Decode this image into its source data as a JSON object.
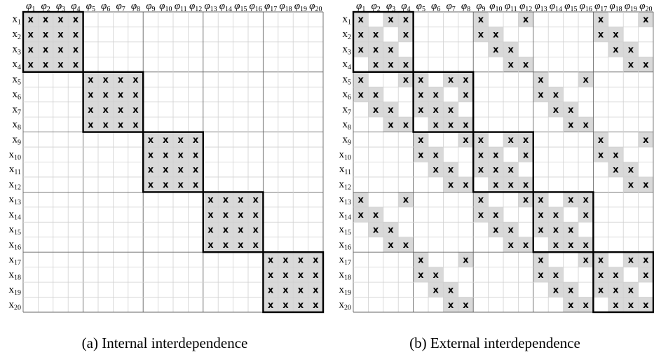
{
  "col_symbol": "φ",
  "row_symbol": "x",
  "subscripts": [
    "1",
    "2",
    "3",
    "4",
    "5",
    "6",
    "7",
    "8",
    "9",
    "10",
    "11",
    "12",
    "13",
    "14",
    "15",
    "16",
    "17",
    "18",
    "19",
    "20"
  ],
  "matrices": [
    {
      "caption": "(a) Internal interdependence",
      "mark": "x",
      "rows": [
        [
          1,
          2,
          3,
          4
        ],
        [
          1,
          2,
          3,
          4
        ],
        [
          1,
          2,
          3,
          4
        ],
        [
          1,
          2,
          3,
          4
        ],
        [
          5,
          6,
          7,
          8
        ],
        [
          5,
          6,
          7,
          8
        ],
        [
          5,
          6,
          7,
          8
        ],
        [
          5,
          6,
          7,
          8
        ],
        [
          9,
          10,
          11,
          12
        ],
        [
          9,
          10,
          11,
          12
        ],
        [
          9,
          10,
          11,
          12
        ],
        [
          9,
          10,
          11,
          12
        ],
        [
          13,
          14,
          15,
          16
        ],
        [
          13,
          14,
          15,
          16
        ],
        [
          13,
          14,
          15,
          16
        ],
        [
          13,
          14,
          15,
          16
        ],
        [
          17,
          18,
          19,
          20
        ],
        [
          17,
          18,
          19,
          20
        ],
        [
          17,
          18,
          19,
          20
        ],
        [
          17,
          18,
          19,
          20
        ]
      ]
    },
    {
      "caption": "(b) External interdependence",
      "mark": "x",
      "rows": [
        [
          1,
          3,
          4,
          9,
          12,
          17,
          20
        ],
        [
          1,
          2,
          4,
          9,
          10,
          17,
          18
        ],
        [
          1,
          2,
          3,
          10,
          11,
          18,
          19
        ],
        [
          2,
          3,
          4,
          11,
          12,
          19,
          20
        ],
        [
          1,
          4,
          5,
          7,
          8,
          13,
          16
        ],
        [
          1,
          2,
          5,
          6,
          8,
          13,
          14
        ],
        [
          2,
          3,
          5,
          6,
          7,
          14,
          15
        ],
        [
          3,
          4,
          6,
          7,
          8,
          15,
          16
        ],
        [
          5,
          8,
          9,
          11,
          12,
          17,
          20
        ],
        [
          5,
          6,
          9,
          10,
          12,
          17,
          18
        ],
        [
          6,
          7,
          9,
          10,
          11,
          18,
          19
        ],
        [
          7,
          8,
          10,
          11,
          12,
          19,
          20
        ],
        [
          1,
          4,
          9,
          12,
          13,
          15,
          16
        ],
        [
          1,
          2,
          9,
          10,
          13,
          14,
          16
        ],
        [
          2,
          3,
          10,
          11,
          13,
          14,
          15
        ],
        [
          3,
          4,
          11,
          12,
          14,
          15,
          16
        ],
        [
          5,
          8,
          13,
          16,
          17,
          19,
          20
        ],
        [
          5,
          6,
          13,
          14,
          17,
          18,
          20
        ],
        [
          6,
          7,
          14,
          15,
          17,
          18,
          19
        ],
        [
          7,
          8,
          15,
          16,
          18,
          19,
          20
        ]
      ]
    }
  ]
}
